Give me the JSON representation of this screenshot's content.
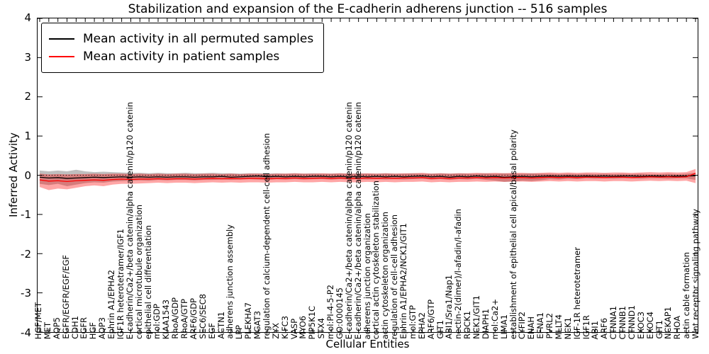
{
  "figure": {
    "title": "Stabilization and expansion of the E-cadherin adherens junction -- 516 samples",
    "xlabel": "Cellular Entities",
    "ylabel": "Inferred Activity"
  },
  "legend": {
    "items": [
      {
        "label": "Mean activity in all permuted samples",
        "color": "#000000"
      },
      {
        "label": "Mean activity in patient samples",
        "color": "#ff0000"
      }
    ]
  },
  "chart_data": {
    "type": "line",
    "title": "Stabilization and expansion of the E-cadherin adherens junction -- 516 samples",
    "xlabel": "Cellular Entities",
    "ylabel": "Inferred Activity",
    "ylim": [
      -4,
      4
    ],
    "yticks": [
      -4,
      -3,
      -2,
      -1,
      0,
      1,
      2,
      3,
      4
    ],
    "grid": false,
    "legend_position": "upper left",
    "zero_line": {
      "y": 0,
      "style": "dotted",
      "color": "#000000"
    },
    "categories": [
      "HGF/MET",
      "MET",
      "AQP5",
      "EGFR/EGFR/EGF/EGF",
      "CDH1",
      "EGFR",
      "HGF",
      "AQP3",
      "Ephrin A1/EPHA2",
      "IGF1R heterotetramer/IGF1",
      "E-cadherin/Ca2+/beta catenin/alpha catenin/p120 catenin",
      "cortical microtubule organization",
      "epithelial cell differentiation",
      "mol:GDP",
      "KIAA1543",
      "RhoA/GDP",
      "RhoA/GTP",
      "ARF6/GDP",
      "SEC6/SEC8",
      "EGF",
      "ACTN1",
      "adherens junction assembly",
      "LPP",
      "PLEKHA7",
      "MGAT3",
      "regulation of calcium-dependent cell-cell adhesion",
      "ZYX",
      "KIFC3",
      "VASP",
      "MYO6",
      "PIP5K1C",
      "STX4",
      "mol:PI-4-5-P2",
      "GO:0000145",
      "E-cadherin/Ca2+/beta catenin/alpha catenin/p120 catenin",
      "E-cadherin/Ca2+/beta catenin/alpha catenin/p120 catenin",
      "adherens junction organization",
      "cortical actin cytoskeleton stabilization",
      "actin cytoskeleton organization",
      "regulation of cell-cell adhesion",
      "Ephrin A1/EPHA2/NCK1/GIT1",
      "mol:GTP",
      "EPHA2",
      "ARF6/GTP",
      "GIT1",
      "ABI1/Sra1/Nap1",
      "nectin-2(dimer)/l-afadin/l-afadin",
      "ROCK1",
      "NCK1/GIT1",
      "DIAPH1",
      "mol:Ca2+",
      "LIMA1",
      "establishment of epithelial cell apical/basal polarity",
      "CYFIP2",
      "ENAH",
      "EFNA1",
      "PVRL2",
      "MLLT4",
      "NCK1",
      "IGF-1R heterotetramer",
      "IGF1R",
      "ABI1",
      "ARF6",
      "CTNNA1",
      "CTNNB1",
      "CTNND1",
      "EXOC3",
      "EXOC4",
      "GIT1",
      "NCKAP1",
      "RHOA",
      "actin cable formation",
      "Wnt receptor signaling pathway"
    ],
    "series": [
      {
        "name": "Mean activity in all permuted samples",
        "color": "#000000",
        "values": [
          -0.05,
          -0.07,
          -0.06,
          -0.08,
          -0.07,
          -0.06,
          -0.05,
          -0.06,
          -0.05,
          -0.04,
          -0.05,
          -0.04,
          -0.05,
          -0.04,
          -0.05,
          -0.04,
          -0.04,
          -0.05,
          -0.04,
          -0.04,
          -0.03,
          -0.05,
          -0.04,
          -0.03,
          -0.02,
          -0.04,
          -0.03,
          -0.04,
          -0.03,
          -0.04,
          -0.03,
          -0.03,
          -0.04,
          -0.03,
          -0.04,
          -0.03,
          -0.04,
          -0.03,
          -0.04,
          -0.03,
          -0.04,
          -0.03,
          -0.02,
          -0.04,
          -0.03,
          -0.05,
          -0.03,
          -0.04,
          -0.02,
          -0.04,
          -0.03,
          -0.05,
          -0.04,
          -0.03,
          -0.04,
          -0.03,
          -0.02,
          -0.03,
          -0.02,
          -0.03,
          -0.02,
          -0.03,
          -0.02,
          -0.03,
          -0.02,
          -0.02,
          -0.03,
          -0.02,
          -0.02,
          -0.03,
          -0.02,
          -0.02,
          -0.01
        ],
        "band": {
          "fill": "#000000",
          "opacity": 0.25,
          "upper": [
            0.12,
            0.1,
            0.12,
            0.1,
            0.14,
            0.1,
            0.08,
            0.09,
            0.08,
            0.07,
            0.06,
            0.06,
            0.05,
            0.06,
            0.05,
            0.05,
            0.06,
            0.05,
            0.05,
            0.06,
            0.05,
            0.05,
            0.04,
            0.05,
            0.05,
            0.04,
            0.05,
            0.04,
            0.05,
            0.04,
            0.05,
            0.04,
            0.04,
            0.05,
            0.04,
            0.05,
            0.04,
            0.04,
            0.05,
            0.04,
            0.04,
            0.05,
            0.04,
            0.04,
            0.05,
            0.04,
            0.05,
            0.04,
            0.04,
            0.05,
            0.04,
            0.05,
            0.04,
            0.04,
            0.05,
            0.04,
            0.04,
            0.03,
            0.04,
            0.03,
            0.04,
            0.03,
            0.04,
            0.03,
            0.04,
            0.03,
            0.04,
            0.03,
            0.03,
            0.04,
            0.03,
            0.04,
            0.06
          ],
          "lower": [
            -0.22,
            -0.25,
            -0.22,
            -0.28,
            -0.24,
            -0.2,
            -0.18,
            -0.19,
            -0.16,
            -0.15,
            -0.14,
            -0.13,
            -0.14,
            -0.12,
            -0.13,
            -0.12,
            -0.12,
            -0.13,
            -0.12,
            -0.12,
            -0.11,
            -0.12,
            -0.11,
            -0.1,
            -0.11,
            -0.12,
            -0.1,
            -0.11,
            -0.1,
            -0.11,
            -0.1,
            -0.1,
            -0.11,
            -0.1,
            -0.11,
            -0.1,
            -0.11,
            -0.1,
            -0.11,
            -0.1,
            -0.11,
            -0.1,
            -0.09,
            -0.11,
            -0.1,
            -0.12,
            -0.1,
            -0.11,
            -0.09,
            -0.12,
            -0.14,
            -0.17,
            -0.16,
            -0.14,
            -0.15,
            -0.13,
            -0.1,
            -0.11,
            -0.09,
            -0.1,
            -0.08,
            -0.09,
            -0.08,
            -0.09,
            -0.08,
            -0.08,
            -0.09,
            -0.08,
            -0.08,
            -0.09,
            -0.08,
            -0.08,
            -0.12
          ]
        }
      },
      {
        "name": "Mean activity in patient samples",
        "color": "#ff0000",
        "values": [
          -0.12,
          -0.15,
          -0.14,
          -0.16,
          -0.14,
          -0.13,
          -0.12,
          -0.13,
          -0.11,
          -0.1,
          -0.11,
          -0.1,
          -0.1,
          -0.09,
          -0.1,
          -0.09,
          -0.09,
          -0.1,
          -0.09,
          -0.08,
          -0.09,
          -0.08,
          -0.09,
          -0.08,
          -0.08,
          -0.09,
          -0.08,
          -0.08,
          -0.07,
          -0.08,
          -0.08,
          -0.07,
          -0.08,
          -0.07,
          -0.08,
          -0.08,
          -0.07,
          -0.08,
          -0.07,
          -0.08,
          -0.07,
          -0.07,
          -0.06,
          -0.08,
          -0.07,
          -0.08,
          -0.07,
          -0.07,
          -0.06,
          -0.07,
          -0.06,
          -0.07,
          -0.06,
          -0.06,
          -0.07,
          -0.06,
          -0.05,
          -0.06,
          -0.05,
          -0.06,
          -0.05,
          -0.05,
          -0.06,
          -0.05,
          -0.05,
          -0.06,
          -0.05,
          -0.04,
          -0.05,
          -0.04,
          -0.05,
          -0.04,
          0.05
        ],
        "band": {
          "fill": "#ff0000",
          "opacity": 0.35,
          "upper": [
            0.04,
            0.02,
            0.03,
            0.02,
            0.03,
            0.03,
            0.04,
            0.03,
            0.04,
            0.04,
            0.03,
            0.04,
            0.03,
            0.04,
            0.03,
            0.04,
            0.04,
            0.03,
            0.04,
            0.04,
            0.03,
            0.04,
            0.03,
            0.04,
            0.04,
            0.03,
            0.04,
            0.04,
            0.05,
            0.04,
            0.04,
            0.05,
            0.04,
            0.05,
            0.04,
            0.04,
            0.05,
            0.04,
            0.05,
            0.04,
            0.05,
            0.05,
            0.06,
            0.04,
            0.05,
            0.04,
            0.05,
            0.05,
            0.06,
            0.05,
            0.06,
            0.05,
            0.06,
            0.06,
            0.05,
            0.06,
            0.07,
            0.06,
            0.07,
            0.06,
            0.07,
            0.07,
            0.06,
            0.07,
            0.07,
            0.06,
            0.07,
            0.08,
            0.07,
            0.08,
            0.07,
            0.08,
            0.16
          ],
          "lower": [
            -0.3,
            -0.38,
            -0.34,
            -0.36,
            -0.32,
            -0.28,
            -0.26,
            -0.28,
            -0.24,
            -0.22,
            -0.22,
            -0.21,
            -0.2,
            -0.19,
            -0.2,
            -0.19,
            -0.19,
            -0.2,
            -0.19,
            -0.18,
            -0.19,
            -0.18,
            -0.19,
            -0.18,
            -0.18,
            -0.19,
            -0.18,
            -0.18,
            -0.17,
            -0.18,
            -0.18,
            -0.17,
            -0.18,
            -0.17,
            -0.18,
            -0.18,
            -0.17,
            -0.18,
            -0.17,
            -0.18,
            -0.17,
            -0.17,
            -0.16,
            -0.18,
            -0.17,
            -0.18,
            -0.17,
            -0.17,
            -0.16,
            -0.17,
            -0.16,
            -0.17,
            -0.16,
            -0.16,
            -0.17,
            -0.16,
            -0.15,
            -0.16,
            -0.15,
            -0.16,
            -0.15,
            -0.15,
            -0.16,
            -0.15,
            -0.15,
            -0.16,
            -0.15,
            -0.14,
            -0.15,
            -0.14,
            -0.15,
            -0.14,
            -0.2
          ]
        }
      }
    ]
  }
}
